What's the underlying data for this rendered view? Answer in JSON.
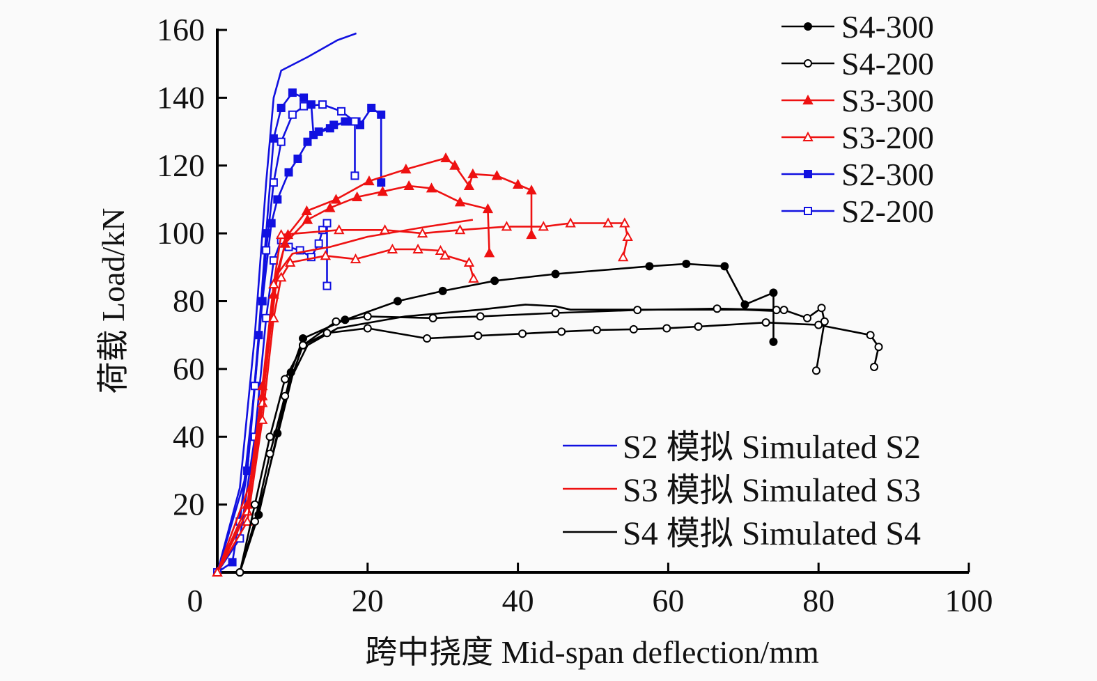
{
  "chart_data": {
    "type": "line",
    "xlabel": "跨中挠度 Mid-span deflection/mm",
    "ylabel": "荷载 Load/kN",
    "xlim": [
      0,
      100
    ],
    "ylim": [
      0,
      160
    ],
    "xticks": [
      "0",
      "20",
      "40",
      "60",
      "80",
      "100"
    ],
    "yticks": [
      "20",
      "40",
      "60",
      "80",
      "100",
      "120",
      "140",
      "160"
    ],
    "grid": false,
    "legend_experimental_placement": "top-right",
    "legend_simulated_placement": "bottom-right",
    "colors": {
      "S2": "#1010e0",
      "S3": "#ee1111",
      "S4": "#000000"
    },
    "legend_experimental": [
      {
        "label": "S4-300",
        "color": "#000000",
        "marker": "circle-filled"
      },
      {
        "label": "S4-200",
        "color": "#000000",
        "marker": "circle-open"
      },
      {
        "label": "S3-300",
        "color": "#ee1111",
        "marker": "triangle-filled"
      },
      {
        "label": "S3-200",
        "color": "#ee1111",
        "marker": "triangle-open"
      },
      {
        "label": "S2-300",
        "color": "#1010e0",
        "marker": "square-filled"
      },
      {
        "label": "S2-200",
        "color": "#1010e0",
        "marker": "square-open"
      }
    ],
    "legend_simulated": [
      {
        "label": "S2 模拟 Simulated S2",
        "color": "#1010e0"
      },
      {
        "label": "S3 模拟 Simulated S3",
        "color": "#ee1111"
      },
      {
        "label": "S4 模拟 Simulated S4",
        "color": "#000000"
      }
    ],
    "series": [
      {
        "name": "Simulated S2",
        "color": "#1010e0",
        "marker": "none",
        "points": [
          [
            0,
            0
          ],
          [
            3,
            25
          ],
          [
            5,
            70
          ],
          [
            6.5,
            115
          ],
          [
            7.5,
            140
          ],
          [
            8.5,
            148
          ],
          [
            12,
            152
          ],
          [
            16,
            157
          ],
          [
            18.5,
            159
          ]
        ]
      },
      {
        "name": "S2-300",
        "color": "#1010e0",
        "marker": "square-filled",
        "points": [
          [
            0,
            0
          ],
          [
            2,
            3
          ],
          [
            4,
            30
          ],
          [
            5.5,
            70
          ],
          [
            6.5,
            100
          ],
          [
            7.5,
            128
          ],
          [
            8.5,
            137
          ],
          [
            10,
            141.5
          ],
          [
            11.5,
            140
          ],
          [
            12.5,
            138
          ],
          [
            12.8,
            129
          ],
          [
            15,
            131
          ],
          [
            17,
            133
          ],
          [
            18.5,
            133
          ],
          [
            19,
            132
          ],
          [
            20.5,
            137
          ],
          [
            21.8,
            135
          ],
          [
            21.8,
            115
          ]
        ]
      },
      {
        "name": "S2-300",
        "color": "#1010e0",
        "marker": "square-filled",
        "points": [
          [
            0,
            0
          ],
          [
            4,
            30
          ],
          [
            6,
            80
          ],
          [
            7.2,
            103
          ],
          [
            8,
            110
          ],
          [
            9.5,
            118
          ],
          [
            10.7,
            122
          ],
          [
            12,
            127
          ],
          [
            13.5,
            130
          ],
          [
            15.5,
            132
          ],
          [
            18,
            133
          ],
          [
            19,
            132
          ]
        ]
      },
      {
        "name": "S2-200",
        "color": "#1010e0",
        "marker": "square-open",
        "points": [
          [
            0,
            0
          ],
          [
            3,
            15
          ],
          [
            5,
            55
          ],
          [
            6.5,
            95
          ],
          [
            7.5,
            115
          ],
          [
            8.5,
            127
          ],
          [
            10,
            135
          ],
          [
            11.5,
            137.5
          ],
          [
            14,
            138
          ],
          [
            16.5,
            136
          ],
          [
            18.3,
            133
          ],
          [
            18.3,
            117
          ]
        ]
      },
      {
        "name": "S2-200",
        "color": "#1010e0",
        "marker": "square-open",
        "points": [
          [
            0,
            0
          ],
          [
            3,
            10
          ],
          [
            5,
            40
          ],
          [
            6.5,
            75
          ],
          [
            7.5,
            92
          ],
          [
            8.5,
            98
          ],
          [
            9.5,
            96
          ],
          [
            11,
            95
          ],
          [
            12.5,
            93
          ],
          [
            13.5,
            97
          ],
          [
            14,
            101
          ],
          [
            14.6,
            103
          ],
          [
            14.6,
            84.5
          ]
        ]
      },
      {
        "name": "Simulated S3",
        "color": "#ee1111",
        "marker": "none",
        "points": [
          [
            0,
            0
          ],
          [
            5,
            30
          ],
          [
            7,
            70
          ],
          [
            8,
            88
          ],
          [
            10,
            94
          ],
          [
            15,
            96
          ],
          [
            20,
            99
          ],
          [
            28,
            102
          ],
          [
            34,
            104
          ]
        ]
      },
      {
        "name": "S3-300",
        "color": "#ee1111",
        "marker": "triangle-filled",
        "points": [
          [
            0,
            0
          ],
          [
            4,
            20
          ],
          [
            6,
            55
          ],
          [
            7.5,
            85
          ],
          [
            9.4,
            99.6
          ],
          [
            11.9,
            106.6
          ],
          [
            15.8,
            110
          ],
          [
            20.2,
            115.4
          ],
          [
            25.1,
            118.9
          ],
          [
            30.4,
            122.2
          ],
          [
            31.6,
            120
          ],
          [
            33.5,
            114
          ],
          [
            34,
            117.5
          ],
          [
            37.2,
            117
          ],
          [
            40,
            114.4
          ],
          [
            41.8,
            112.7
          ],
          [
            41.8,
            99.6
          ]
        ]
      },
      {
        "name": "S3-300",
        "color": "#ee1111",
        "marker": "triangle-filled",
        "points": [
          [
            0,
            0
          ],
          [
            4,
            18
          ],
          [
            6,
            52
          ],
          [
            7.5,
            82
          ],
          [
            9,
            97
          ],
          [
            12,
            104
          ],
          [
            15,
            107.5
          ],
          [
            18.6,
            110.7
          ],
          [
            22,
            112.3
          ],
          [
            25.5,
            114
          ],
          [
            28.5,
            113.3
          ],
          [
            32.3,
            109.2
          ],
          [
            36,
            107.2
          ],
          [
            36.2,
            94.2
          ]
        ]
      },
      {
        "name": "S3-200",
        "color": "#ee1111",
        "marker": "triangle-open",
        "points": [
          [
            0,
            0
          ],
          [
            4,
            18
          ],
          [
            6,
            50
          ],
          [
            7.5,
            85
          ],
          [
            8.5,
            99.6
          ],
          [
            16.2,
            101
          ],
          [
            22.3,
            101
          ],
          [
            27.3,
            100
          ],
          [
            32.3,
            101
          ],
          [
            38.5,
            102
          ],
          [
            43.4,
            102
          ],
          [
            47,
            103
          ],
          [
            52,
            103
          ],
          [
            54.2,
            103
          ],
          [
            54.6,
            99
          ],
          [
            54,
            93
          ]
        ]
      },
      {
        "name": "S3-200",
        "color": "#ee1111",
        "marker": "triangle-open",
        "points": [
          [
            0,
            0
          ],
          [
            4,
            15
          ],
          [
            6,
            45
          ],
          [
            7.5,
            75
          ],
          [
            8.5,
            87
          ],
          [
            9.7,
            91.4
          ],
          [
            14.4,
            93.4
          ],
          [
            18.4,
            92.4
          ],
          [
            23.3,
            95.3
          ],
          [
            26.7,
            95.3
          ],
          [
            29.7,
            94.9
          ],
          [
            30.3,
            93.5
          ],
          [
            33.5,
            91.4
          ],
          [
            34.1,
            86.7
          ]
        ]
      },
      {
        "name": "Simulated S4",
        "color": "#000000",
        "marker": "none",
        "points": [
          [
            3,
            0
          ],
          [
            6.3,
            25
          ],
          [
            10,
            58
          ],
          [
            12,
            67
          ],
          [
            16,
            72
          ],
          [
            25,
            75.5
          ],
          [
            35,
            77.5
          ],
          [
            41,
            79
          ],
          [
            45,
            78.5
          ],
          [
            47,
            77.5
          ],
          [
            60,
            77.5
          ],
          [
            70,
            77.5
          ],
          [
            75,
            77
          ]
        ]
      },
      {
        "name": "S4-300",
        "color": "#000000",
        "marker": "circle-filled",
        "points": [
          [
            3,
            0
          ],
          [
            5.5,
            17
          ],
          [
            8,
            41
          ],
          [
            9.8,
            59
          ],
          [
            11.4,
            69
          ],
          [
            17,
            74.5
          ],
          [
            24,
            80
          ],
          [
            30,
            83
          ],
          [
            36.9,
            86
          ],
          [
            45,
            88
          ],
          [
            57.5,
            90.3
          ],
          [
            62.4,
            91
          ],
          [
            67.5,
            90.3
          ],
          [
            70.2,
            79
          ],
          [
            74,
            82.5
          ],
          [
            74,
            68
          ]
        ]
      },
      {
        "name": "S4-200",
        "color": "#000000",
        "marker": "circle-open",
        "points": [
          [
            3,
            0
          ],
          [
            5,
            20
          ],
          [
            7,
            40
          ],
          [
            9,
            57
          ],
          [
            11.4,
            67
          ],
          [
            15.8,
            74
          ],
          [
            20,
            75.5
          ],
          [
            28.7,
            75
          ],
          [
            35,
            75.5
          ],
          [
            45,
            76.5
          ],
          [
            55.9,
            77.4
          ],
          [
            66.5,
            77.8
          ],
          [
            74.4,
            77.4
          ],
          [
            75.4,
            77.4
          ],
          [
            78.5,
            75
          ],
          [
            80.4,
            78
          ],
          [
            80.8,
            74
          ],
          [
            79.7,
            59.5
          ]
        ]
      },
      {
        "name": "S4-200",
        "color": "#000000",
        "marker": "circle-open",
        "points": [
          [
            3,
            0
          ],
          [
            5,
            15
          ],
          [
            7,
            35
          ],
          [
            9,
            52
          ],
          [
            11.4,
            67
          ],
          [
            14.6,
            70.6
          ],
          [
            20,
            72
          ],
          [
            27.9,
            69
          ],
          [
            34.7,
            69.8
          ],
          [
            40.6,
            70.4
          ],
          [
            45.8,
            71
          ],
          [
            50.5,
            71.5
          ],
          [
            55.4,
            71.7
          ],
          [
            59.8,
            72
          ],
          [
            64,
            72.5
          ],
          [
            73,
            73.7
          ],
          [
            80,
            73
          ],
          [
            86.9,
            70
          ],
          [
            88,
            66.5
          ],
          [
            87.4,
            60.6
          ]
        ]
      }
    ]
  }
}
